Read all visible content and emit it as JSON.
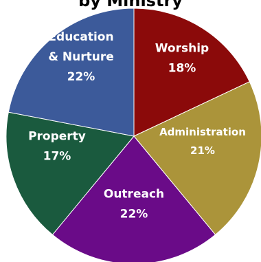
{
  "chart_data": {
    "type": "pie",
    "title": "by Ministry",
    "slices": [
      {
        "label": "Worship",
        "label_lines": [
          "Worship"
        ],
        "percent_text": "18%",
        "value": 18,
        "color": "#8b0a0a"
      },
      {
        "label": "Administration",
        "label_lines": [
          "Administration"
        ],
        "percent_text": "21%",
        "value": 21,
        "color": "#ab943a"
      },
      {
        "label": "Outreach",
        "label_lines": [
          "Outreach"
        ],
        "percent_text": "22%",
        "value": 22,
        "color": "#6a0b88"
      },
      {
        "label": "Property",
        "label_lines": [
          "Property"
        ],
        "percent_text": "17%",
        "value": 17,
        "color": "#1a5a3e"
      },
      {
        "label": "Education & Nurture",
        "label_lines": [
          "Education",
          "& Nurture"
        ],
        "percent_text": "22%",
        "value": 22,
        "color": "#3c5a9a"
      }
    ]
  }
}
